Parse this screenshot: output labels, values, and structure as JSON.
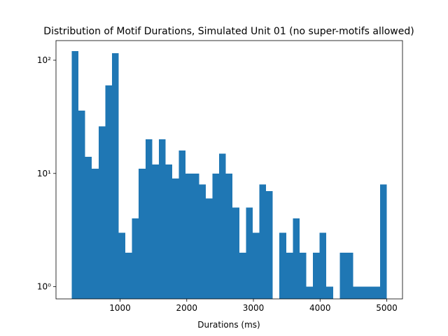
{
  "chart_data": {
    "type": "histogram",
    "title": "Distribution of Motif Durations, Simulated Unit 01 (no super-motifs allowed)",
    "x_label": "Durations (ms)",
    "color": "#1f77b4",
    "yscale": "log",
    "bins": [
      275,
      375.5,
      476,
      576.5,
      677,
      777.5,
      878,
      978.5,
      1079,
      1179.5,
      1280,
      1380.5,
      1481,
      1581.5,
      1682,
      1782.5,
      1883,
      1983.5,
      2084,
      2184.5,
      2285,
      2385.5,
      2486,
      2586.5,
      2687,
      2787.5,
      2888,
      2988.5,
      3089,
      3189.5,
      3290,
      3390.5,
      3491,
      3591.5,
      3692,
      3792.5,
      3893,
      3993.5,
      4094,
      4194.5,
      4295,
      4395.5,
      4496,
      4596.5,
      4697,
      4797.5,
      4898,
      4998.5
    ],
    "values": [
      120,
      36,
      14,
      11,
      26,
      60,
      115,
      3,
      2,
      4,
      11,
      20,
      12,
      20,
      12,
      9,
      16,
      10,
      10,
      8,
      6,
      10,
      15,
      10,
      5,
      2,
      5,
      3,
      8,
      7,
      0,
      3,
      2,
      4,
      2,
      1,
      2,
      3,
      1,
      0,
      2,
      2,
      1,
      1,
      1,
      1,
      8
    ],
    "xlim": [
      39,
      5236
    ],
    "xticks": [
      1000,
      2000,
      3000,
      4000,
      5000
    ],
    "ylim": [
      0.78,
      149
    ],
    "yticks": [
      {
        "value": 1,
        "label": "10⁰"
      },
      {
        "value": 10,
        "label": "10¹"
      },
      {
        "value": 100,
        "label": "10²"
      }
    ]
  }
}
